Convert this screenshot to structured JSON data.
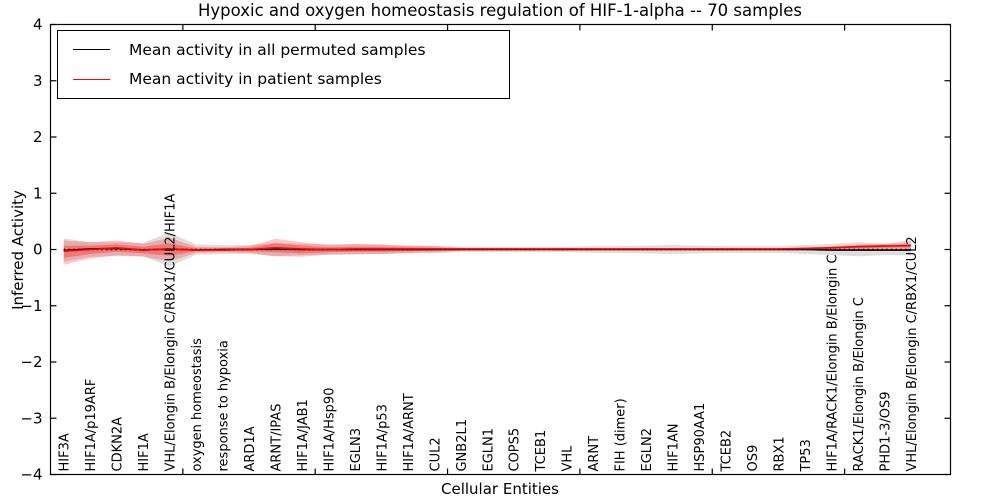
{
  "title": "Hypoxic and oxygen homeostasis regulation of HIF-1-alpha -- 70 samples",
  "axes": {
    "ylabel": "Inferred Activity",
    "xlabel": "Cellular Entities",
    "ylim": [
      -4,
      4
    ],
    "yticks": [
      {
        "value": 4,
        "label": "4"
      },
      {
        "value": 3,
        "label": "3"
      },
      {
        "value": 2,
        "label": "2"
      },
      {
        "value": 1,
        "label": "1"
      },
      {
        "value": 0,
        "label": "0"
      },
      {
        "value": -1,
        "label": "−1"
      },
      {
        "value": -2,
        "label": "−2"
      },
      {
        "value": -3,
        "label": "−3"
      },
      {
        "value": -4,
        "label": "−4"
      }
    ],
    "xlim": [
      0,
      34
    ],
    "unlabeled_xticks": [
      5,
      10,
      15,
      20,
      25,
      30
    ],
    "frame_color": "#000000"
  },
  "legend": {
    "entries": [
      {
        "label": "Mean activity in all permuted samples",
        "color": "#000000"
      },
      {
        "label": "Mean activity in patient samples",
        "color": "#ff0000"
      }
    ]
  },
  "chart_data": {
    "type": "line",
    "title": "Hypoxic and oxygen homeostasis regulation of HIF-1-alpha -- 70 samples",
    "xlabel": "Cellular Entities",
    "ylabel": "Inferred Activity",
    "ylim": [
      -4,
      4
    ],
    "legend_position": "upper left",
    "grid": false,
    "categories": [
      "HIF3A",
      "HIF1A/p19ARF",
      "CDKN2A",
      "HIF1A",
      "VHL/Elongin B/Elongin C/RBX1/CUL2/HIF1A",
      "oxygen homeostasis",
      "response to hypoxia",
      "ARD1A",
      "ARNT/IPAS",
      "HIF1A/JAB1",
      "HIF1A/Hsp90",
      "EGLN3",
      "HIF1A/p53",
      "HIF1A/ARNT",
      "CUL2",
      "GNB2L1",
      "EGLN1",
      "COPS5",
      "TCEB1",
      "VHL",
      "ARNT",
      "FIH (dimer)",
      "EGLN2",
      "HIF1AN",
      "HSP90AA1",
      "TCEB2",
      "OS9",
      "RBX1",
      "TP53",
      "HIF1A/RACK1/Elongin B/Elongin C",
      "RACK1/Elongin B/Elongin C",
      "PHD1-3/OS9",
      "VHL/Elongin B/Elongin C/RBX1/CUL2"
    ],
    "series": [
      {
        "name": "Mean activity in all permuted samples",
        "color": "#000000",
        "values": [
          -0.02,
          0.01,
          0.02,
          -0.01,
          0.01,
          -0.01,
          0.0,
          0.0,
          0.01,
          0.0,
          0.0,
          0.0,
          0.0,
          0.0,
          0.0,
          0.0,
          0.0,
          0.0,
          0.0,
          0.0,
          0.0,
          0.0,
          0.0,
          0.0,
          0.0,
          0.0,
          0.0,
          0.0,
          0.0,
          -0.01,
          -0.01,
          -0.01,
          -0.01
        ]
      },
      {
        "name": "Mean activity in patient samples",
        "color": "#ff0000",
        "values": [
          -0.03,
          0.0,
          0.03,
          -0.01,
          0.01,
          -0.01,
          -0.01,
          0.0,
          0.03,
          0.01,
          0.0,
          0.01,
          0.01,
          0.01,
          0.01,
          0.01,
          0.01,
          0.01,
          0.01,
          0.01,
          0.01,
          0.01,
          0.01,
          0.01,
          0.01,
          0.01,
          0.01,
          0.01,
          0.02,
          0.03,
          0.05,
          0.06,
          0.07
        ]
      }
    ],
    "bands": [
      {
        "name": "permuted-samples-range",
        "color": "#888888",
        "opacity": 0.28,
        "upper": [
          0.2,
          0.13,
          0.13,
          0.12,
          0.3,
          0.09,
          0.08,
          0.08,
          0.12,
          0.1,
          0.09,
          0.09,
          0.08,
          0.07,
          0.07,
          0.05,
          0.05,
          0.05,
          0.05,
          0.05,
          0.06,
          0.06,
          0.07,
          0.08,
          0.07,
          0.06,
          0.06,
          0.06,
          0.08,
          0.1,
          0.13,
          0.1,
          0.17
        ],
        "lower": [
          -0.22,
          -0.13,
          -0.12,
          -0.12,
          -0.3,
          -0.09,
          -0.08,
          -0.08,
          -0.12,
          -0.1,
          -0.09,
          -0.09,
          -0.08,
          -0.07,
          -0.07,
          -0.05,
          -0.05,
          -0.05,
          -0.05,
          -0.05,
          -0.06,
          -0.06,
          -0.07,
          -0.08,
          -0.07,
          -0.06,
          -0.06,
          -0.06,
          -0.08,
          -0.1,
          -0.12,
          -0.1,
          -0.1
        ]
      },
      {
        "name": "patient-samples-range-outer",
        "color": "#ff0000",
        "opacity": 0.22,
        "upper": [
          0.16,
          0.13,
          0.16,
          0.1,
          0.21,
          0.05,
          0.04,
          0.06,
          0.19,
          0.13,
          0.08,
          0.1,
          0.09,
          0.07,
          0.06,
          0.03,
          0.02,
          0.02,
          0.02,
          0.02,
          0.02,
          0.02,
          0.02,
          0.02,
          0.02,
          0.02,
          0.02,
          0.02,
          0.03,
          0.06,
          0.09,
          0.1,
          0.12
        ],
        "lower": [
          -0.27,
          -0.16,
          -0.1,
          -0.13,
          -0.21,
          -0.06,
          -0.05,
          -0.06,
          -0.12,
          -0.13,
          -0.09,
          -0.08,
          -0.08,
          -0.06,
          -0.05,
          -0.02,
          -0.01,
          -0.01,
          -0.01,
          -0.01,
          -0.01,
          -0.01,
          -0.01,
          -0.01,
          -0.01,
          -0.01,
          -0.01,
          -0.01,
          -0.01,
          -0.01,
          -0.02,
          -0.01,
          -0.02
        ]
      },
      {
        "name": "patient-samples-range-inner",
        "color": "#ff0000",
        "opacity": 0.3,
        "upper": [
          0.07,
          0.07,
          0.09,
          0.05,
          0.11,
          0.02,
          0.02,
          0.03,
          0.11,
          0.07,
          0.04,
          0.05,
          0.05,
          0.04,
          0.03,
          0.02,
          0.01,
          0.01,
          0.01,
          0.01,
          0.01,
          0.01,
          0.01,
          0.01,
          0.01,
          0.01,
          0.01,
          0.01,
          0.02,
          0.04,
          0.07,
          0.08,
          0.09
        ],
        "lower": [
          -0.15,
          -0.08,
          -0.04,
          -0.07,
          -0.11,
          -0.03,
          -0.03,
          -0.03,
          -0.05,
          -0.07,
          -0.05,
          -0.04,
          -0.04,
          -0.03,
          -0.02,
          -0.01,
          0.0,
          0.0,
          0.0,
          0.0,
          0.0,
          0.0,
          0.0,
          0.0,
          0.0,
          0.0,
          0.0,
          0.0,
          0.0,
          0.01,
          0.02,
          0.03,
          0.04
        ]
      }
    ],
    "zero_line": {
      "value": 0,
      "style": "dotted",
      "color": "#000000"
    }
  }
}
